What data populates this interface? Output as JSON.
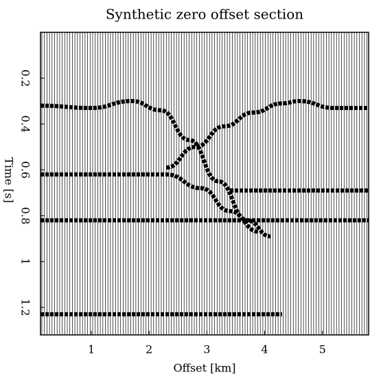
{
  "chart_data": {
    "type": "wiggle",
    "title": "Synthetic zero offset section",
    "x_label": "Offset [km]",
    "y_label": "Time [s]",
    "xlim": [
      0.12,
      5.8
    ],
    "xticks": [
      1,
      2,
      3,
      4,
      5
    ],
    "ylim": [
      0,
      1.32
    ],
    "yticks": [
      0.2,
      0.4,
      0.6,
      0.8,
      1,
      1.2
    ],
    "y_inverted": true,
    "color": "#000000",
    "events": [
      {
        "x": [
          0.12,
          1,
          1.7,
          2.2,
          2.7,
          3.2,
          3.7,
          4.1
        ],
        "t": [
          0.32,
          0.33,
          0.3,
          0.34,
          0.47,
          0.65,
          0.82,
          0.89
        ]
      },
      {
        "x": [
          2.3,
          2.8,
          3.3,
          3.8,
          4.3,
          4.6,
          5.2,
          5.8
        ],
        "t": [
          0.59,
          0.5,
          0.41,
          0.35,
          0.31,
          0.3,
          0.33,
          0.33
        ]
      },
      {
        "x": [
          0.12,
          2.3,
          2.9,
          3.4,
          3.9
        ],
        "t": [
          0.62,
          0.62,
          0.68,
          0.78,
          0.87
        ]
      },
      {
        "x": [
          3.4,
          5.8
        ],
        "t": [
          0.69,
          0.69
        ]
      },
      {
        "x": [
          0.12,
          5.8
        ],
        "t": [
          0.82,
          0.82
        ]
      },
      {
        "x": [
          0.12,
          4.3
        ],
        "t": [
          1.23,
          1.23
        ]
      }
    ]
  }
}
